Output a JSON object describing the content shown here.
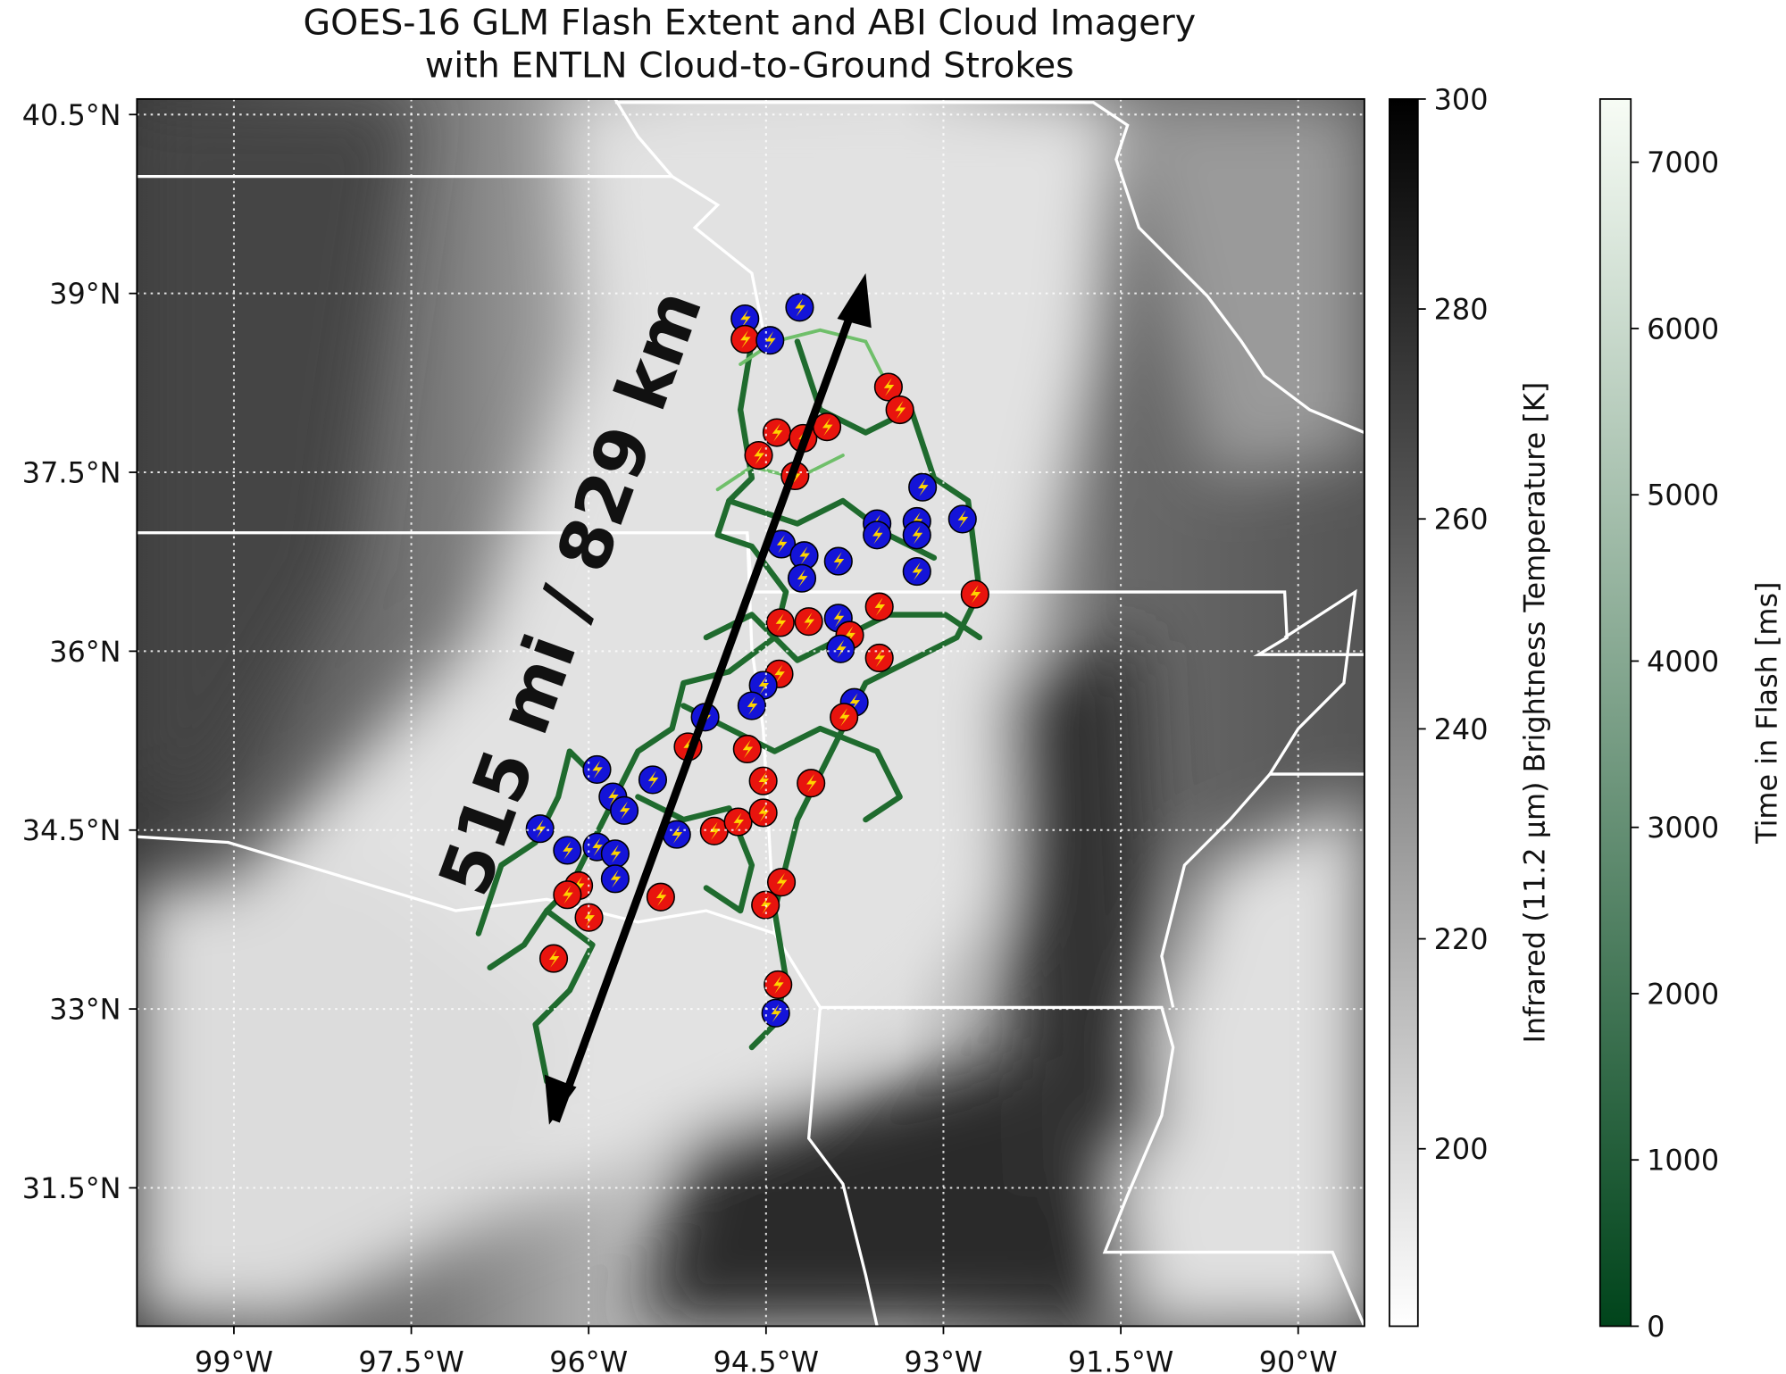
{
  "title": [
    "GOES-16 GLM Flash Extent and ABI Cloud Imagery",
    "with ENTLN Cloud-to-Ground Strokes"
  ],
  "map": {
    "xlim": [
      -99.82,
      -89.44
    ],
    "ylim": [
      30.34,
      40.63
    ],
    "xticks": [
      {
        "value": -99,
        "label": "99°W"
      },
      {
        "value": -97.5,
        "label": "97.5°W"
      },
      {
        "value": -96,
        "label": "96°W"
      },
      {
        "value": -94.5,
        "label": "94.5°W"
      },
      {
        "value": -93,
        "label": "93°W"
      },
      {
        "value": -91.5,
        "label": "91.5°W"
      },
      {
        "value": -90,
        "label": "90°W"
      }
    ],
    "yticks": [
      {
        "value": 40.5,
        "label": "40.5°N"
      },
      {
        "value": 39,
        "label": "39°N"
      },
      {
        "value": 37.5,
        "label": "37.5°N"
      },
      {
        "value": 36,
        "label": "36°N"
      },
      {
        "value": 34.5,
        "label": "34.5°N"
      },
      {
        "value": 33,
        "label": "33°N"
      },
      {
        "value": 31.5,
        "label": "31.5°N"
      }
    ],
    "grid": true,
    "annotation": "515 mi / 829 km"
  },
  "colorbars": [
    {
      "label": "Infrared (11.2 µm) Brightness Temperature [K]",
      "lim": [
        183.1,
        300
      ],
      "ticks": [
        200,
        220,
        240,
        260,
        280,
        300
      ],
      "colors": [
        "#ffffff",
        "#000000"
      ]
    },
    {
      "label": "Time in Flash [ms]",
      "lim": [
        0,
        7380
      ],
      "ticks": [
        0,
        1000,
        2000,
        3000,
        4000,
        5000,
        6000,
        7000
      ],
      "colors": [
        "#00441b",
        "#f7fcf5"
      ]
    }
  ]
}
